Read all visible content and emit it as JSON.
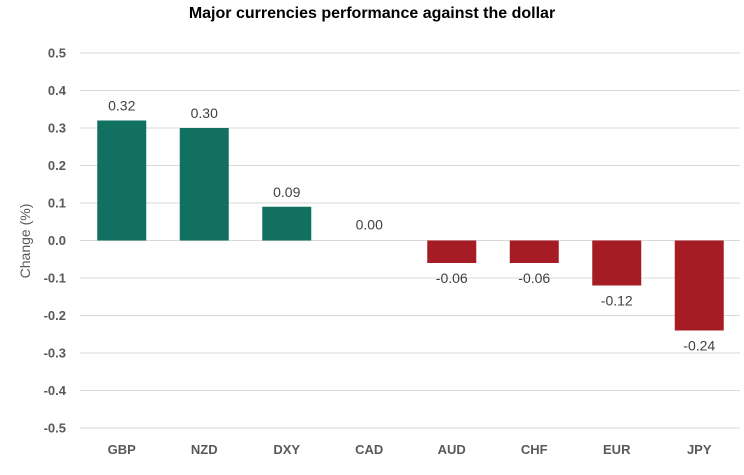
{
  "chart_data": {
    "type": "bar",
    "title": "Major currencies performance against the dollar",
    "xlabel": "",
    "ylabel": "Change (%)",
    "ylim": [
      -0.5,
      0.5
    ],
    "yticks": [
      0.5,
      0.4,
      0.3,
      0.2,
      0.1,
      0.0,
      -0.1,
      -0.2,
      -0.3,
      -0.4,
      -0.5
    ],
    "ytick_labels": [
      "0.5",
      "0.4",
      "0.3",
      "0.2",
      "0.1",
      "0.0",
      "-0.1",
      "-0.2",
      "-0.3",
      "-0.4",
      "-0.5"
    ],
    "categories": [
      "GBP",
      "NZD",
      "DXY",
      "CAD",
      "AUD",
      "CHF",
      "EUR",
      "JPY"
    ],
    "values": [
      0.32,
      0.3,
      0.09,
      0.0,
      -0.06,
      -0.06,
      -0.12,
      -0.24
    ],
    "data_labels": [
      "0.32",
      "0.30",
      "0.09",
      "0.00",
      "-0.06",
      "-0.06",
      "-0.12",
      "-0.24"
    ],
    "grid": true,
    "legend": "none",
    "colors": {
      "positive": "#117060",
      "negative": "#a61c24"
    }
  }
}
